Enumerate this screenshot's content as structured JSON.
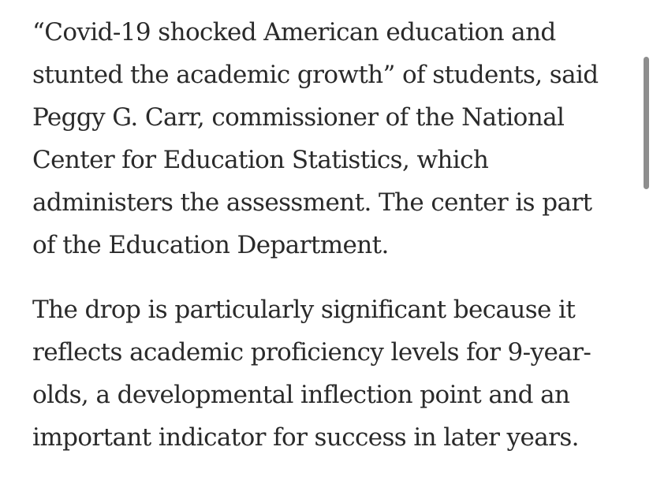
{
  "article": {
    "paragraphs": [
      {
        "lines": [
          "“Covid-19 shocked American education and",
          "stunted the academic growth” of students, said",
          "Peggy G. Carr, commissioner of the National",
          "Center for Education Statistics, which",
          "administers the assessment. The center is part",
          "of the Education Department."
        ]
      },
      {
        "lines": [
          "The drop is particularly significant because it",
          "reflects academic proficiency levels for 9-year-",
          "olds, a developmental inflection point and an",
          "important indicator for success in later years."
        ]
      }
    ]
  },
  "colors": {
    "text": "#2a2a2a",
    "background": "#ffffff",
    "scrollbar": "#8e8e8e"
  }
}
